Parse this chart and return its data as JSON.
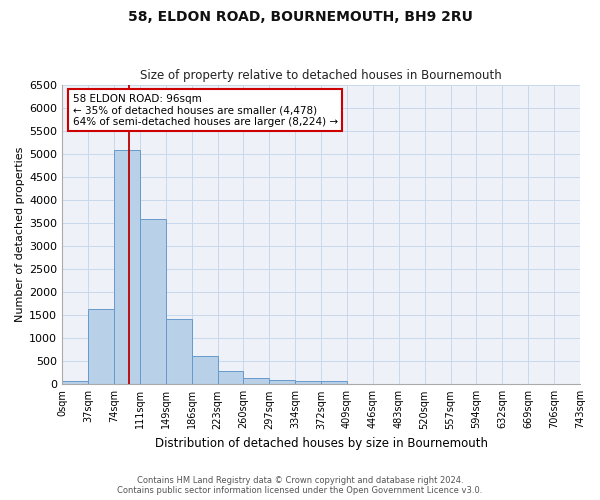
{
  "title": "58, ELDON ROAD, BOURNEMOUTH, BH9 2RU",
  "subtitle": "Size of property relative to detached houses in Bournemouth",
  "xlabel": "Distribution of detached houses by size in Bournemouth",
  "ylabel": "Number of detached properties",
  "bar_values": [
    75,
    1630,
    5080,
    3580,
    1410,
    620,
    295,
    145,
    90,
    65,
    65,
    0,
    0,
    0,
    0,
    0,
    0,
    0,
    0,
    0
  ],
  "bar_labels": [
    "0sqm",
    "37sqm",
    "74sqm",
    "111sqm",
    "149sqm",
    "186sqm",
    "223sqm",
    "260sqm",
    "297sqm",
    "334sqm",
    "372sqm",
    "409sqm",
    "446sqm",
    "483sqm",
    "520sqm",
    "557sqm",
    "594sqm",
    "632sqm",
    "669sqm",
    "706sqm",
    "743sqm"
  ],
  "bar_color": "#b8d0e8",
  "bar_edgecolor": "#6699cc",
  "grid_color": "#c8d8ea",
  "background_color": "#eef2f8",
  "annotation_text": "58 ELDON ROAD: 96sqm\n← 35% of detached houses are smaller (4,478)\n64% of semi-detached houses are larger (8,224) →",
  "annotation_box_color": "#ffffff",
  "annotation_edge_color": "#cc0000",
  "ylim": [
    0,
    6500
  ],
  "yticks": [
    0,
    500,
    1000,
    1500,
    2000,
    2500,
    3000,
    3500,
    4000,
    4500,
    5000,
    5500,
    6000,
    6500
  ],
  "footer_line1": "Contains HM Land Registry data © Crown copyright and database right 2024.",
  "footer_line2": "Contains public sector information licensed under the Open Government Licence v3.0."
}
